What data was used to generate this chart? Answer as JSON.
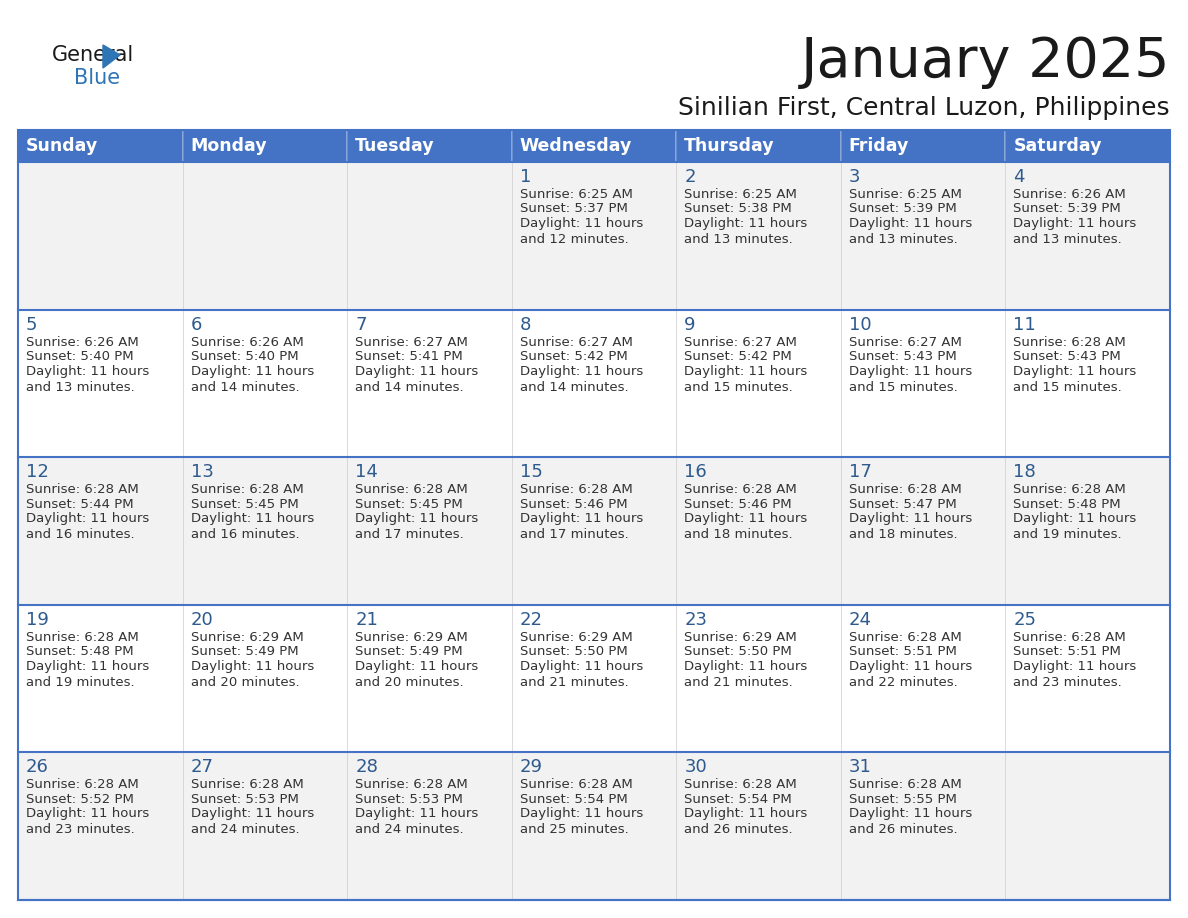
{
  "title": "January 2025",
  "subtitle": "Sinilian First, Central Luzon, Philippines",
  "days_of_week": [
    "Sunday",
    "Monday",
    "Tuesday",
    "Wednesday",
    "Thursday",
    "Friday",
    "Saturday"
  ],
  "header_bg": "#4472C4",
  "header_text": "#FFFFFF",
  "row_bg_odd": "#F2F2F2",
  "row_bg_even": "#FFFFFF",
  "day_num_color": "#2E5A8E",
  "text_color": "#333333",
  "separator_color": "#4472C4",
  "logo_text_color": "#1a1a1a",
  "logo_blue_color": "#2E75B6",
  "logo_triangle_color": "#2E75B6",
  "calendar": [
    [
      {
        "day": null,
        "sunrise": null,
        "sunset": null,
        "daylight": null
      },
      {
        "day": null,
        "sunrise": null,
        "sunset": null,
        "daylight": null
      },
      {
        "day": null,
        "sunrise": null,
        "sunset": null,
        "daylight": null
      },
      {
        "day": 1,
        "sunrise": "6:25 AM",
        "sunset": "5:37 PM",
        "daylight": "11 hours\nand 12 minutes."
      },
      {
        "day": 2,
        "sunrise": "6:25 AM",
        "sunset": "5:38 PM",
        "daylight": "11 hours\nand 13 minutes."
      },
      {
        "day": 3,
        "sunrise": "6:25 AM",
        "sunset": "5:39 PM",
        "daylight": "11 hours\nand 13 minutes."
      },
      {
        "day": 4,
        "sunrise": "6:26 AM",
        "sunset": "5:39 PM",
        "daylight": "11 hours\nand 13 minutes."
      }
    ],
    [
      {
        "day": 5,
        "sunrise": "6:26 AM",
        "sunset": "5:40 PM",
        "daylight": "11 hours\nand 13 minutes."
      },
      {
        "day": 6,
        "sunrise": "6:26 AM",
        "sunset": "5:40 PM",
        "daylight": "11 hours\nand 14 minutes."
      },
      {
        "day": 7,
        "sunrise": "6:27 AM",
        "sunset": "5:41 PM",
        "daylight": "11 hours\nand 14 minutes."
      },
      {
        "day": 8,
        "sunrise": "6:27 AM",
        "sunset": "5:42 PM",
        "daylight": "11 hours\nand 14 minutes."
      },
      {
        "day": 9,
        "sunrise": "6:27 AM",
        "sunset": "5:42 PM",
        "daylight": "11 hours\nand 15 minutes."
      },
      {
        "day": 10,
        "sunrise": "6:27 AM",
        "sunset": "5:43 PM",
        "daylight": "11 hours\nand 15 minutes."
      },
      {
        "day": 11,
        "sunrise": "6:28 AM",
        "sunset": "5:43 PM",
        "daylight": "11 hours\nand 15 minutes."
      }
    ],
    [
      {
        "day": 12,
        "sunrise": "6:28 AM",
        "sunset": "5:44 PM",
        "daylight": "11 hours\nand 16 minutes."
      },
      {
        "day": 13,
        "sunrise": "6:28 AM",
        "sunset": "5:45 PM",
        "daylight": "11 hours\nand 16 minutes."
      },
      {
        "day": 14,
        "sunrise": "6:28 AM",
        "sunset": "5:45 PM",
        "daylight": "11 hours\nand 17 minutes."
      },
      {
        "day": 15,
        "sunrise": "6:28 AM",
        "sunset": "5:46 PM",
        "daylight": "11 hours\nand 17 minutes."
      },
      {
        "day": 16,
        "sunrise": "6:28 AM",
        "sunset": "5:46 PM",
        "daylight": "11 hours\nand 18 minutes."
      },
      {
        "day": 17,
        "sunrise": "6:28 AM",
        "sunset": "5:47 PM",
        "daylight": "11 hours\nand 18 minutes."
      },
      {
        "day": 18,
        "sunrise": "6:28 AM",
        "sunset": "5:48 PM",
        "daylight": "11 hours\nand 19 minutes."
      }
    ],
    [
      {
        "day": 19,
        "sunrise": "6:28 AM",
        "sunset": "5:48 PM",
        "daylight": "11 hours\nand 19 minutes."
      },
      {
        "day": 20,
        "sunrise": "6:29 AM",
        "sunset": "5:49 PM",
        "daylight": "11 hours\nand 20 minutes."
      },
      {
        "day": 21,
        "sunrise": "6:29 AM",
        "sunset": "5:49 PM",
        "daylight": "11 hours\nand 20 minutes."
      },
      {
        "day": 22,
        "sunrise": "6:29 AM",
        "sunset": "5:50 PM",
        "daylight": "11 hours\nand 21 minutes."
      },
      {
        "day": 23,
        "sunrise": "6:29 AM",
        "sunset": "5:50 PM",
        "daylight": "11 hours\nand 21 minutes."
      },
      {
        "day": 24,
        "sunrise": "6:28 AM",
        "sunset": "5:51 PM",
        "daylight": "11 hours\nand 22 minutes."
      },
      {
        "day": 25,
        "sunrise": "6:28 AM",
        "sunset": "5:51 PM",
        "daylight": "11 hours\nand 23 minutes."
      }
    ],
    [
      {
        "day": 26,
        "sunrise": "6:28 AM",
        "sunset": "5:52 PM",
        "daylight": "11 hours\nand 23 minutes."
      },
      {
        "day": 27,
        "sunrise": "6:28 AM",
        "sunset": "5:53 PM",
        "daylight": "11 hours\nand 24 minutes."
      },
      {
        "day": 28,
        "sunrise": "6:28 AM",
        "sunset": "5:53 PM",
        "daylight": "11 hours\nand 24 minutes."
      },
      {
        "day": 29,
        "sunrise": "6:28 AM",
        "sunset": "5:54 PM",
        "daylight": "11 hours\nand 25 minutes."
      },
      {
        "day": 30,
        "sunrise": "6:28 AM",
        "sunset": "5:54 PM",
        "daylight": "11 hours\nand 26 minutes."
      },
      {
        "day": 31,
        "sunrise": "6:28 AM",
        "sunset": "5:55 PM",
        "daylight": "11 hours\nand 26 minutes."
      },
      {
        "day": null,
        "sunrise": null,
        "sunset": null,
        "daylight": null
      }
    ]
  ],
  "figsize": [
    11.88,
    9.18
  ],
  "dpi": 100
}
